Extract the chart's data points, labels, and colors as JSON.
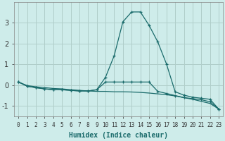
{
  "xlabel": "Humidex (Indice chaleur)",
  "background_color": "#ceecea",
  "grid_color": "#b0ceca",
  "line_color": "#1a6b6b",
  "x_values": [
    0,
    1,
    2,
    3,
    4,
    5,
    6,
    7,
    8,
    9,
    10,
    11,
    12,
    13,
    14,
    15,
    16,
    17,
    18,
    19,
    20,
    21,
    22,
    23
  ],
  "line1": [
    0.15,
    -0.05,
    -0.12,
    -0.18,
    -0.22,
    -0.22,
    -0.25,
    -0.28,
    -0.28,
    -0.22,
    0.38,
    1.42,
    3.05,
    3.52,
    3.52,
    2.88,
    2.08,
    1.02,
    -0.32,
    -0.48,
    -0.58,
    -0.63,
    -0.68,
    -1.15
  ],
  "line2": [
    0.15,
    -0.05,
    -0.12,
    -0.18,
    -0.22,
    -0.22,
    -0.25,
    -0.28,
    -0.28,
    -0.22,
    0.15,
    0.15,
    0.15,
    0.15,
    0.15,
    0.15,
    -0.3,
    -0.4,
    -0.5,
    -0.6,
    -0.65,
    -0.7,
    -0.8,
    -1.15
  ],
  "line3": [
    0.15,
    -0.02,
    -0.08,
    -0.12,
    -0.16,
    -0.18,
    -0.22,
    -0.25,
    -0.28,
    -0.3,
    -0.3,
    -0.32,
    -0.32,
    -0.33,
    -0.35,
    -0.38,
    -0.42,
    -0.46,
    -0.52,
    -0.6,
    -0.68,
    -0.78,
    -0.88,
    -1.15
  ],
  "ylim": [
    -1.5,
    4.0
  ],
  "xlim": [
    -0.5,
    23.5
  ],
  "yticks": [
    -1,
    0,
    1,
    2,
    3
  ]
}
